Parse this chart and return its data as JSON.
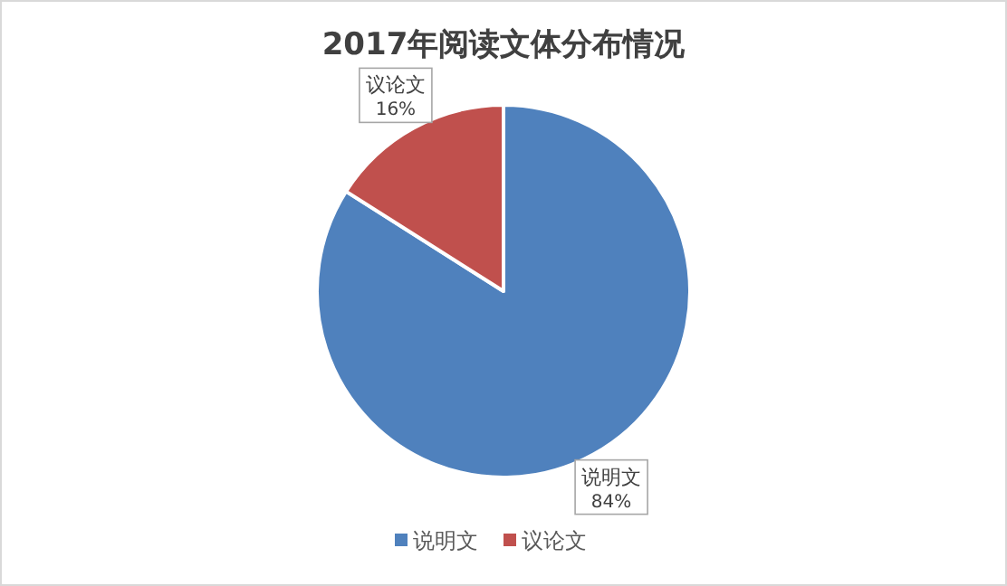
{
  "chart_data": {
    "type": "pie",
    "title": "2017年阅读文体分布情况",
    "categories": [
      "说明文",
      "议论文"
    ],
    "values": [
      84,
      16
    ],
    "colors": [
      "#4f81bd",
      "#c0504d"
    ],
    "value_labels": [
      "84%",
      "16%"
    ],
    "legend": "bottom"
  }
}
